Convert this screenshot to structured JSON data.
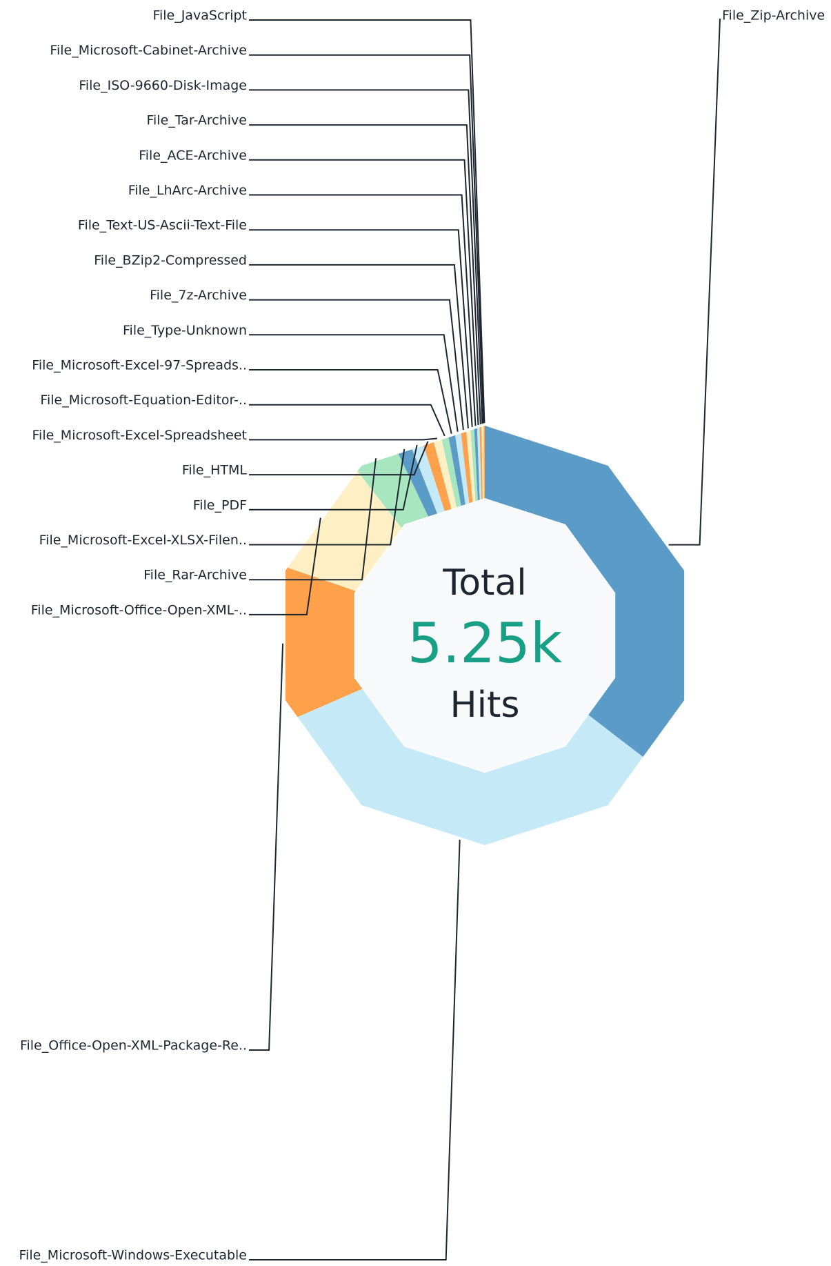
{
  "chart_data": {
    "type": "pie",
    "center_label": "Total",
    "center_value": "5.25k",
    "center_unit": "Hits",
    "categories": [
      "File_Zip-Archive",
      "File_Microsoft-Windows-Executable",
      "File_Office-Open-XML-Package-Re..",
      "File_Microsoft-Office-Open-XML-..",
      "File_Rar-Archive",
      "File_Microsoft-Excel-XLSX-Filen..",
      "File_PDF",
      "File_HTML",
      "File_Microsoft-Excel-Spreadsheet",
      "File_Microsoft-Equation-Editor-..",
      "File_Microsoft-Excel-97-Spreads..",
      "File_Type-Unknown",
      "File_7z-Archive",
      "File_BZip2-Compressed",
      "File_Text-US-Ascii-Text-File",
      "File_LhArc-Archive",
      "File_ACE-Archive",
      "File_Tar-Archive",
      "File_ISO-9660-Disk-Image",
      "File_Microsoft-Cabinet-Archive",
      "File_JavaScript"
    ],
    "values": [
      1860,
      1735,
      620,
      485,
      180,
      60,
      50,
      45,
      35,
      30,
      28,
      25,
      22,
      18,
      15,
      12,
      10,
      8,
      6,
      4,
      3
    ],
    "colors": [
      "#5b9bc8",
      "#c6e9f7",
      "#ffa04a",
      "#ffefc4",
      "#a8e6c0",
      "#5b9bc8",
      "#c6e9f7",
      "#ffa04a",
      "#ffefc4",
      "#a8e6c0",
      "#5b9bc8",
      "#c6e9f7",
      "#ffa04a",
      "#ffefc4",
      "#a8e6c0",
      "#5b9bc8",
      "#c6e9f7",
      "#ffa04a",
      "#ffefc4",
      "#a8e6c0",
      "#ffa04a"
    ]
  }
}
